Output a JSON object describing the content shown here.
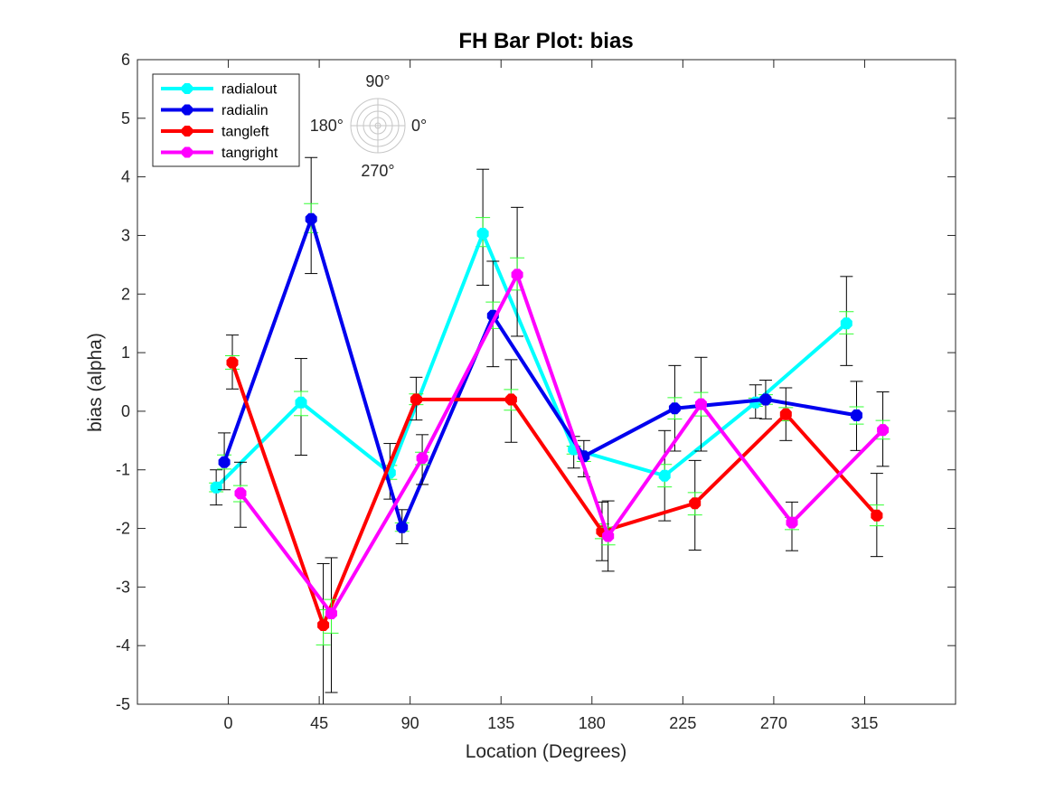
{
  "chart_data": {
    "type": "line",
    "title": "FH Bar Plot: bias",
    "xlabel": "Location (Degrees)",
    "ylabel": "bias (alpha)",
    "xlim": [
      -45,
      360
    ],
    "ylim": [
      -5,
      6
    ],
    "xticks": [
      0,
      45,
      90,
      135,
      180,
      225,
      270,
      315
    ],
    "xtick_labels": [
      "0",
      "45",
      "90",
      "135",
      "180",
      "225",
      "270",
      "315"
    ],
    "yticks": [
      -5,
      -4,
      -3,
      -2,
      -1,
      0,
      1,
      2,
      3,
      4,
      5,
      6
    ],
    "ytick_labels": [
      "-5",
      "-4",
      "-3",
      "-2",
      "-1",
      "0",
      "1",
      "2",
      "3",
      "4",
      "5",
      "6"
    ],
    "grid": false,
    "legend_position": "top-left",
    "series": [
      {
        "name": "radialout",
        "color": "#00ffff",
        "x": [
          -6,
          36,
          80,
          126,
          171,
          216,
          261,
          306
        ],
        "values": [
          -1.3,
          0.15,
          -1.05,
          3.03,
          -0.65,
          -1.1,
          0.15,
          1.5
        ],
        "err_lo": [
          0.3,
          0.9,
          0.45,
          0.88,
          0.32,
          0.77,
          0.27,
          0.72
        ],
        "err_hi": [
          0.3,
          0.75,
          0.5,
          1.1,
          0.22,
          0.77,
          0.3,
          0.8
        ]
      },
      {
        "name": "radialin",
        "color": "#0000ee",
        "x": [
          -2,
          41,
          86,
          131,
          176,
          221,
          266,
          311
        ],
        "values": [
          -0.87,
          3.28,
          -1.98,
          1.63,
          -0.77,
          0.05,
          0.2,
          -0.07
        ],
        "err_lo": [
          0.47,
          0.93,
          0.28,
          0.87,
          0.35,
          0.73,
          0.33,
          0.6
        ],
        "err_hi": [
          0.5,
          1.05,
          0.3,
          0.93,
          0.27,
          0.73,
          0.33,
          0.58
        ]
      },
      {
        "name": "tangleft",
        "color": "#ff0000",
        "x": [
          2,
          47,
          93,
          140,
          185,
          231,
          276,
          321
        ],
        "values": [
          0.83,
          -3.65,
          0.2,
          0.2,
          -2.05,
          -1.57,
          -0.05,
          -1.78
        ],
        "err_lo": [
          0.45,
          1.35,
          0.35,
          0.73,
          0.5,
          0.8,
          0.45,
          0.7
        ],
        "err_hi": [
          0.47,
          1.05,
          0.38,
          0.68,
          0.5,
          0.73,
          0.45,
          0.72
        ]
      },
      {
        "name": "tangright",
        "color": "#ff00ff",
        "x": [
          6,
          51,
          96,
          143,
          188,
          234,
          279,
          324
        ],
        "values": [
          -1.4,
          -3.45,
          -0.8,
          2.33,
          -2.13,
          0.12,
          -1.9,
          -0.32
        ],
        "err_lo": [
          0.58,
          1.35,
          0.45,
          1.05,
          0.6,
          0.8,
          0.48,
          0.62
        ],
        "err_hi": [
          0.53,
          0.95,
          0.4,
          1.15,
          0.6,
          0.8,
          0.35,
          0.65
        ]
      }
    ]
  },
  "compass": {
    "label_top": "90°",
    "label_left": "180°",
    "label_right": "0°",
    "label_bottom": "270°"
  },
  "colors": {
    "axis": "#262626",
    "errorbar": "#000000",
    "inner_errorbar": "#33ff33",
    "marker_fill": "#ffffff"
  }
}
